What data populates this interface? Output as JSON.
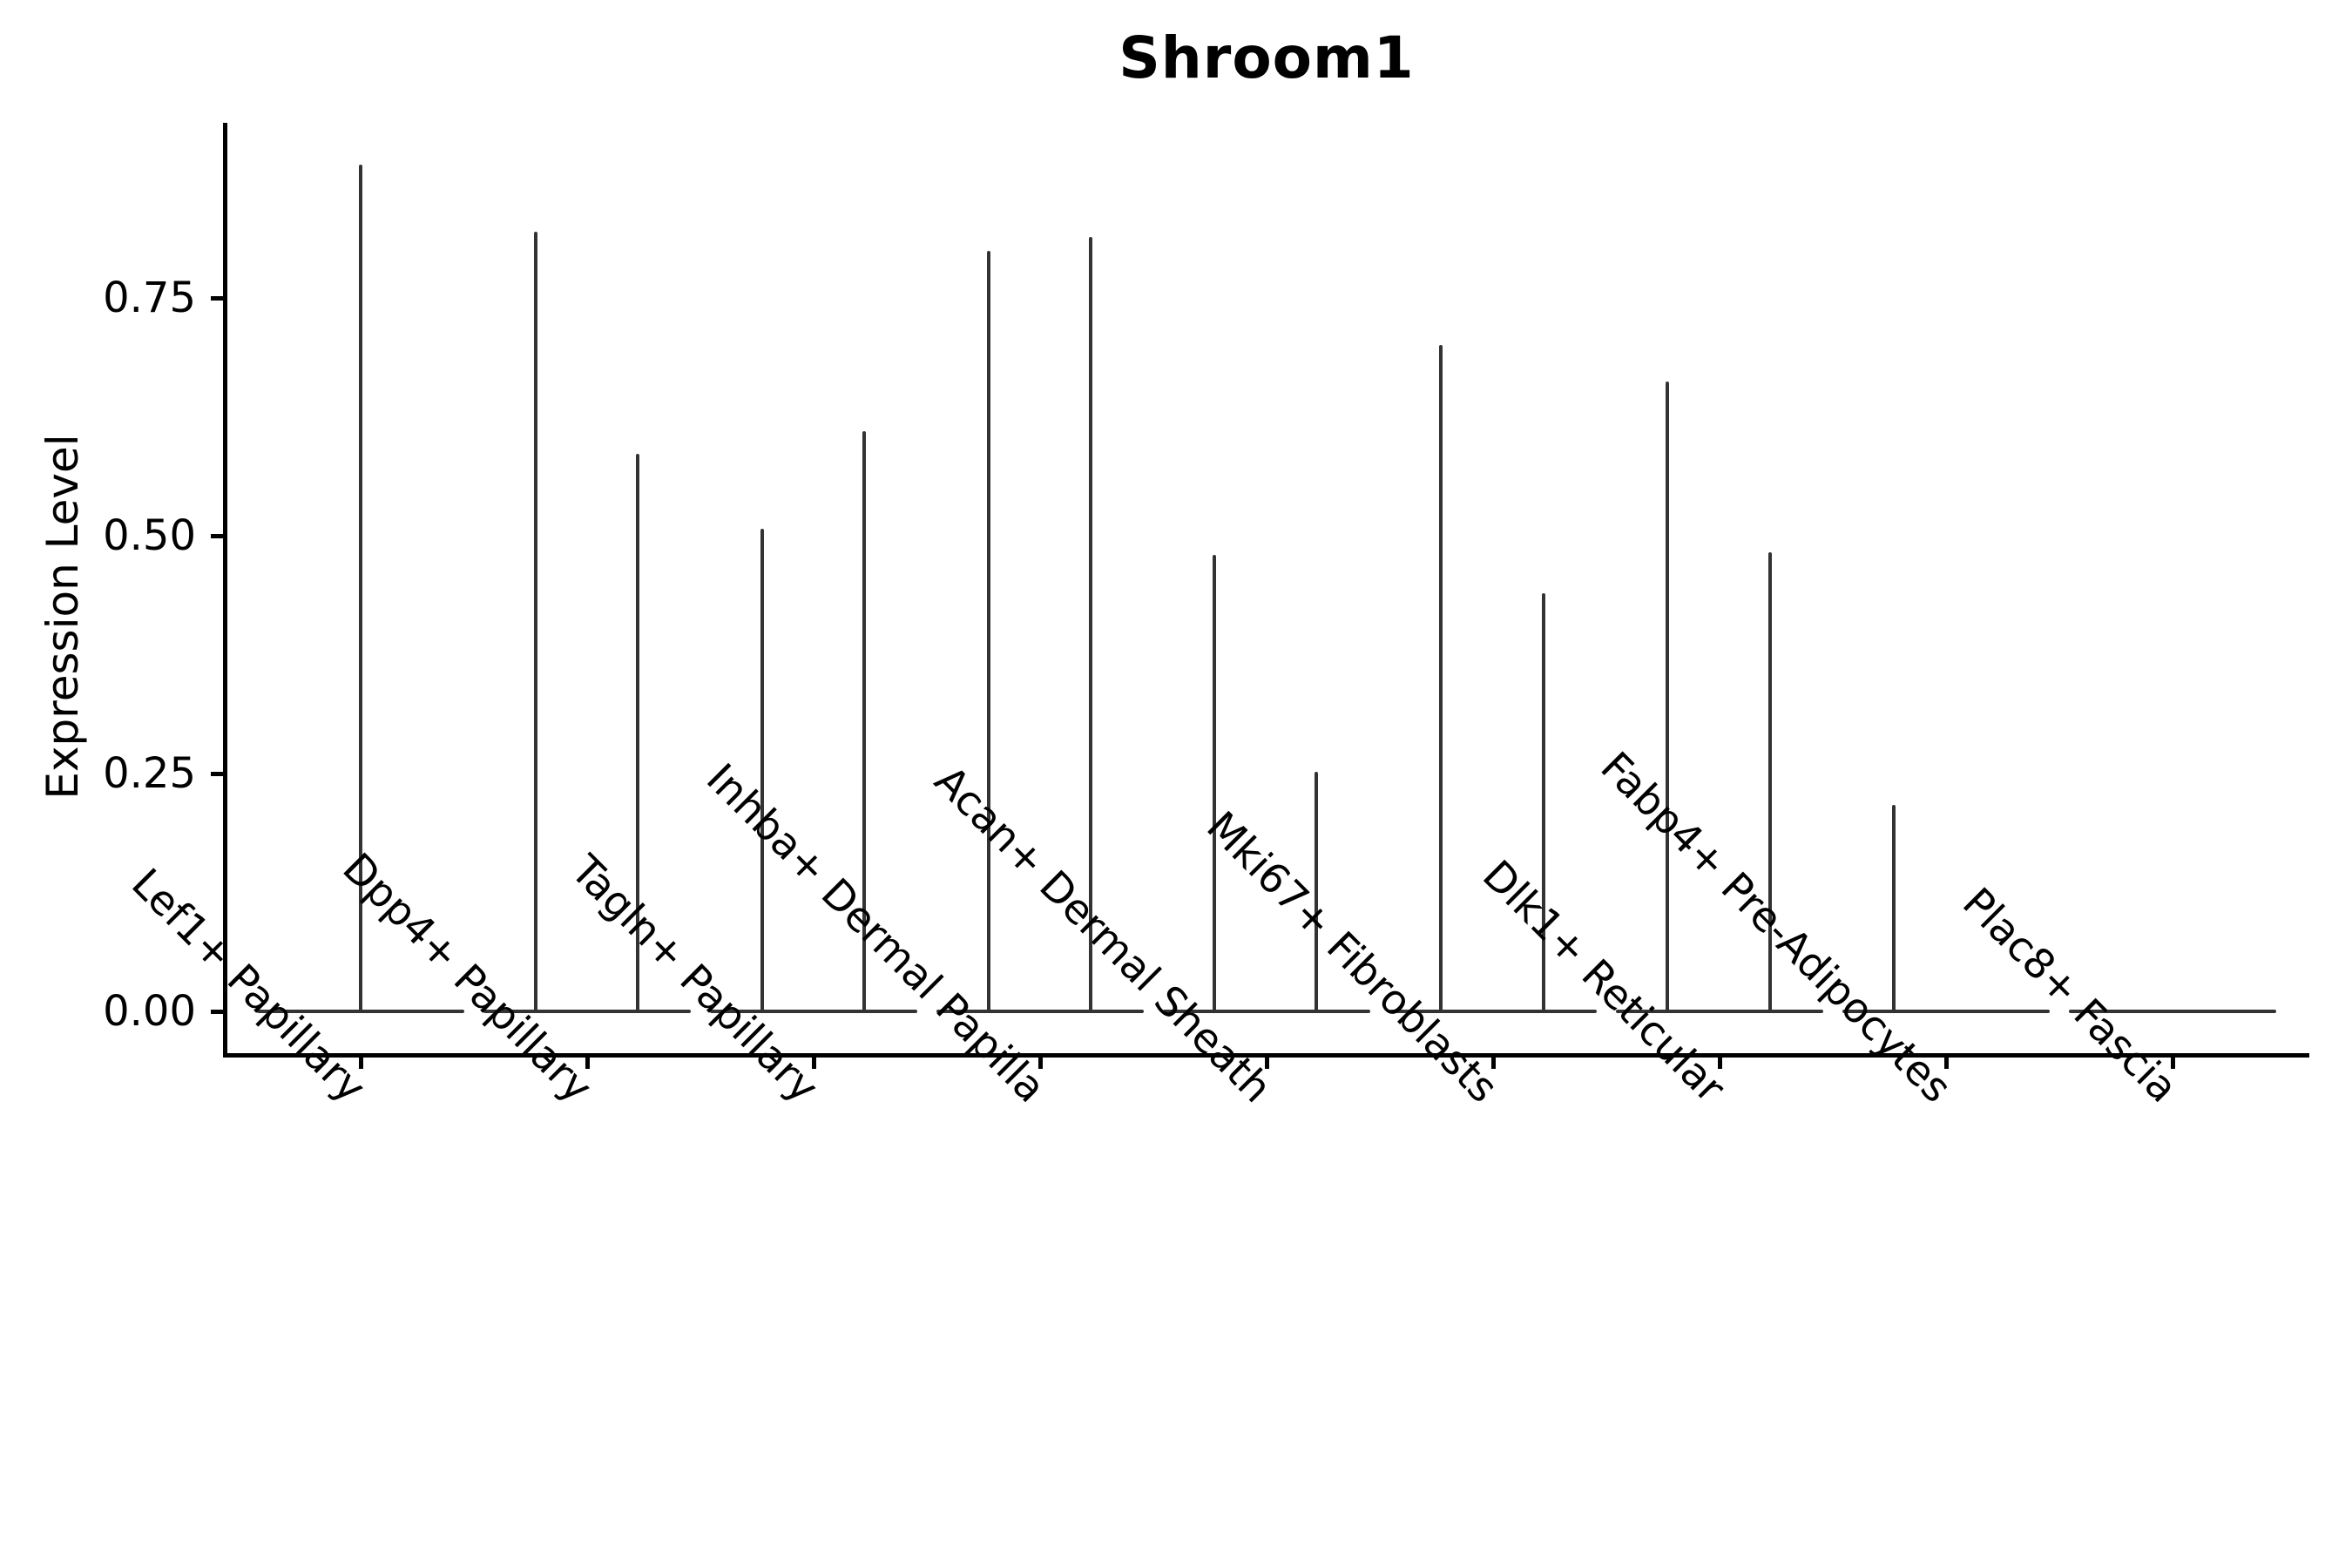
{
  "title": "Shroom1",
  "y_axis": {
    "label": "Expression Level",
    "tick_labels": [
      "0.00",
      "0.25",
      "0.50",
      "0.75"
    ]
  },
  "x_axis": {
    "categories": [
      "Lef1+ Papillary",
      "Dpp4+ Papillary",
      "Tagln+ Papillary",
      "Inhba+ Dermal Papilla",
      "Acan+ Dermal Sheath",
      "Mki67+ Fibroblasts",
      "Dlk1+ Reticular",
      "Fabp4+ Pre-Adipocytes",
      "Plac8+ Fascia"
    ]
  },
  "colors": {
    "violin": "#333333",
    "axis": "#000000",
    "text": "#000000",
    "background": "#ffffff"
  },
  "chart_data": {
    "type": "violin",
    "title": "Shroom1",
    "xlabel": "",
    "ylabel": "Expression Level",
    "categories": [
      "Lef1+ Papillary",
      "Dpp4+ Papillary",
      "Tagln+ Papillary",
      "Inhba+ Dermal Papilla",
      "Acan+ Dermal Sheath",
      "Mki67+ Fibroblasts",
      "Dlk1+ Reticular",
      "Fabp4+ Pre-Adipocytes",
      "Plac8+ Fascia"
    ],
    "yticks": [
      0.0,
      0.25,
      0.5,
      0.75
    ],
    "ylim": [
      -0.046,
      0.934
    ],
    "grid": false,
    "legend": false,
    "baseline_value": 0.0,
    "baseline_halfwidth_frac": 0.458,
    "description": "Each category shows a flattened violin: a horizontal bar at expression 0 plus thin vertical spikes reaching the maximum expression of rare expressing cells",
    "series": [
      {
        "category": "Lef1+ Papillary",
        "spikes": [
          {
            "offset_frac": 0.0,
            "max": 0.89
          }
        ]
      },
      {
        "category": "Dpp4+ Papillary",
        "spikes": [
          {
            "offset_frac": -0.227,
            "max": 0.82
          },
          {
            "offset_frac": 0.223,
            "max": 0.586
          }
        ]
      },
      {
        "category": "Tagln+ Papillary",
        "spikes": [
          {
            "offset_frac": -0.227,
            "max": 0.507
          },
          {
            "offset_frac": 0.223,
            "max": 0.61
          }
        ]
      },
      {
        "category": "Inhba+ Dermal Papilla",
        "spikes": [
          {
            "offset_frac": -0.227,
            "max": 0.799
          },
          {
            "offset_frac": 0.223,
            "max": 0.814
          }
        ]
      },
      {
        "category": "Acan+ Dermal Sheath",
        "spikes": [
          {
            "offset_frac": -0.231,
            "max": 0.48
          },
          {
            "offset_frac": 0.219,
            "max": 0.252
          }
        ]
      },
      {
        "category": "Mki67+ Fibroblasts",
        "spikes": [
          {
            "offset_frac": -0.231,
            "max": 0.701
          },
          {
            "offset_frac": 0.223,
            "max": 0.44
          }
        ]
      },
      {
        "category": "Dlk1+ Reticular",
        "spikes": [
          {
            "offset_frac": -0.231,
            "max": 0.662
          },
          {
            "offset_frac": 0.223,
            "max": 0.483
          }
        ]
      },
      {
        "category": "Fabp4+ Pre-Adipocytes",
        "spikes": [
          {
            "offset_frac": -0.231,
            "max": 0.217
          }
        ]
      },
      {
        "category": "Plac8+ Fascia",
        "spikes": []
      }
    ]
  }
}
